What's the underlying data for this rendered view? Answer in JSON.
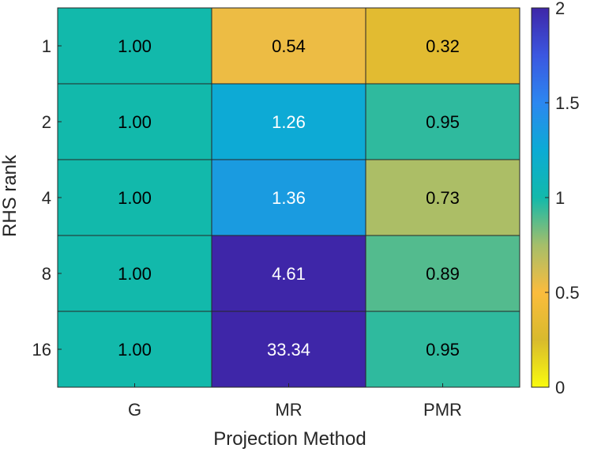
{
  "chart_data": {
    "type": "heatmap",
    "xlabel": "Projection Method",
    "ylabel": "RHS rank",
    "x_categories": [
      "G",
      "MR",
      "PMR"
    ],
    "y_categories": [
      "1",
      "2",
      "4",
      "8",
      "16"
    ],
    "values": [
      [
        1.0,
        0.54,
        0.32
      ],
      [
        1.0,
        1.26,
        0.95
      ],
      [
        1.0,
        1.36,
        0.73
      ],
      [
        1.0,
        4.61,
        0.89
      ],
      [
        1.0,
        33.34,
        0.95
      ]
    ],
    "value_labels": [
      [
        "1.00",
        "0.54",
        "0.32"
      ],
      [
        "1.00",
        "1.26",
        "0.95"
      ],
      [
        "1.00",
        "1.36",
        "0.73"
      ],
      [
        "1.00",
        "4.61",
        "0.89"
      ],
      [
        "1.00",
        "33.34",
        "0.95"
      ]
    ],
    "colorbar": {
      "colormap": "parula-reversed",
      "range": [
        0,
        2
      ],
      "ticks": [
        0,
        0.5,
        1,
        1.5,
        2
      ],
      "tick_labels": [
        "0",
        "0.5",
        "1",
        "1.5",
        "2"
      ]
    },
    "grid": false
  }
}
